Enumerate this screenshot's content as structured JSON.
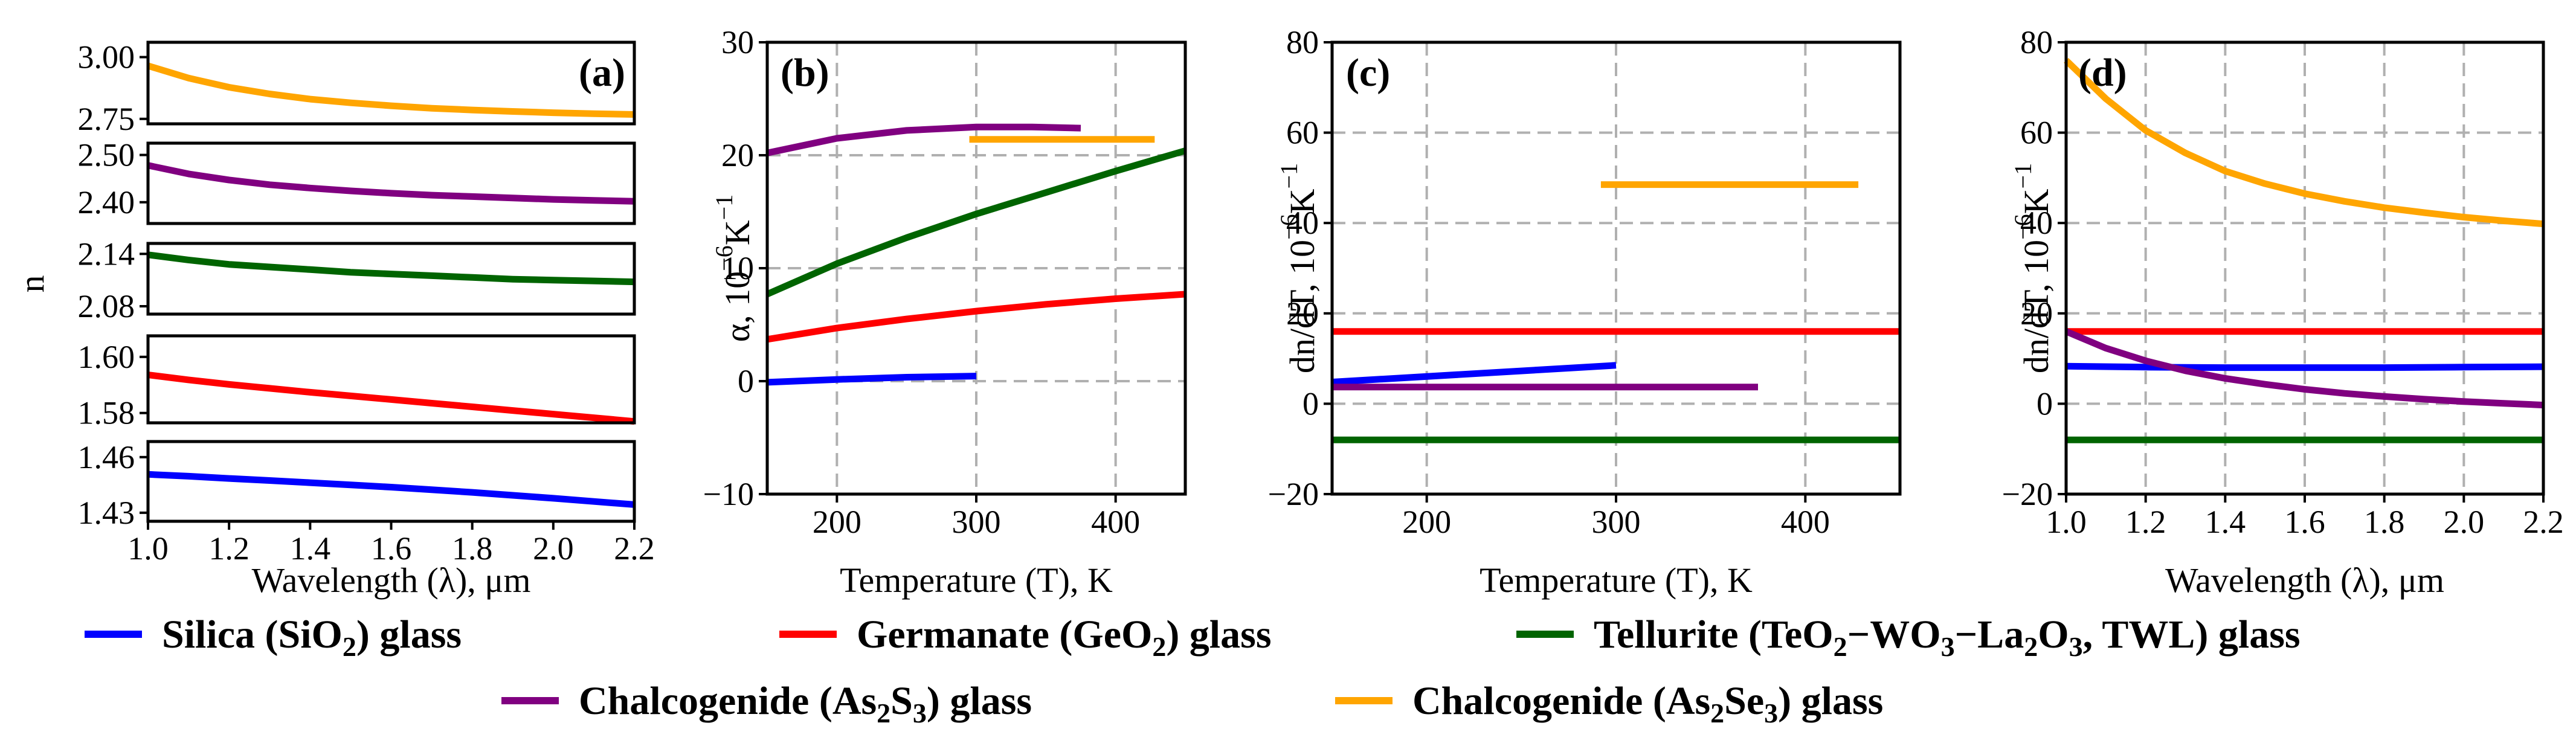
{
  "chart_data": [
    {
      "id": "a",
      "type": "line",
      "panel_label": "(a)",
      "xlabel": "Wavelength (λ), μm",
      "ylabel": "n",
      "xlim": [
        1.0,
        2.2
      ],
      "xticks": [
        "1.0",
        "1.2",
        "1.4",
        "1.6",
        "1.8",
        "2.0",
        "2.2"
      ],
      "xtick_values": [
        1.0,
        1.2,
        1.4,
        1.6,
        1.8,
        2.0,
        2.2
      ],
      "grid": false,
      "subplots": [
        {
          "series": "Chalcogenide (As₂Se₃) glass",
          "color": "#ffa500",
          "ylim": [
            2.73,
            3.06
          ],
          "yticks": [
            "3.00",
            "2.75"
          ],
          "ytick_values": [
            3.0,
            2.75
          ],
          "x": [
            1.0,
            1.1,
            1.2,
            1.3,
            1.4,
            1.5,
            1.6,
            1.7,
            1.8,
            1.9,
            2.0,
            2.1,
            2.2
          ],
          "y": [
            2.965,
            2.915,
            2.878,
            2.851,
            2.83,
            2.815,
            2.803,
            2.793,
            2.786,
            2.78,
            2.775,
            2.771,
            2.768
          ]
        },
        {
          "series": "Chalcogenide (As₂S₃) glass",
          "color": "#800080",
          "ylim": [
            2.355,
            2.525
          ],
          "yticks": [
            "2.50",
            "2.40"
          ],
          "ytick_values": [
            2.5,
            2.4
          ],
          "x": [
            1.0,
            1.1,
            1.2,
            1.3,
            1.4,
            1.5,
            1.6,
            1.7,
            1.8,
            1.9,
            2.0,
            2.1,
            2.2
          ],
          "y": [
            2.478,
            2.46,
            2.447,
            2.437,
            2.43,
            2.424,
            2.419,
            2.415,
            2.412,
            2.409,
            2.406,
            2.404,
            2.402
          ]
        },
        {
          "series": "Tellurite (TeO₂−WO₃−La₂O₃, TWL) glass",
          "color": "#006400",
          "ylim": [
            2.071,
            2.152
          ],
          "yticks": [
            "2.14",
            "2.08"
          ],
          "ytick_values": [
            2.14,
            2.08
          ],
          "x": [
            1.0,
            1.1,
            1.2,
            1.3,
            1.4,
            1.5,
            1.6,
            1.7,
            1.8,
            1.9,
            2.0,
            2.1,
            2.2
          ],
          "y": [
            2.139,
            2.133,
            2.128,
            2.125,
            2.122,
            2.119,
            2.117,
            2.115,
            2.113,
            2.111,
            2.11,
            2.109,
            2.108
          ]
        },
        {
          "series": "Germanate (GeO₂) glass",
          "color": "#ff0000",
          "ylim": [
            1.5765,
            1.6075
          ],
          "yticks": [
            "1.60",
            "1.58"
          ],
          "ytick_values": [
            1.6,
            1.58
          ],
          "x": [
            1.0,
            1.1,
            1.2,
            1.3,
            1.4,
            1.5,
            1.6,
            1.7,
            1.8,
            1.9,
            2.0,
            2.1,
            2.2
          ],
          "y": [
            1.5936,
            1.5918,
            1.5902,
            1.5888,
            1.5874,
            1.5861,
            1.5848,
            1.5835,
            1.5822,
            1.5809,
            1.5796,
            1.5783,
            1.577
          ]
        },
        {
          "series": "Silica (SiO₂) glass",
          "color": "#0000ff",
          "ylim": [
            1.4254,
            1.4684
          ],
          "yticks": [
            "1.46",
            "1.43"
          ],
          "ytick_values": [
            1.46,
            1.43
          ],
          "x": [
            1.0,
            1.1,
            1.2,
            1.3,
            1.4,
            1.5,
            1.6,
            1.7,
            1.8,
            1.9,
            2.0,
            2.1,
            2.2
          ],
          "y": [
            1.4507,
            1.4497,
            1.4485,
            1.4474,
            1.4462,
            1.445,
            1.4438,
            1.4424,
            1.441,
            1.4394,
            1.4378,
            1.4361,
            1.4344
          ]
        }
      ]
    },
    {
      "id": "b",
      "type": "line",
      "panel_label": "(b)",
      "xlabel": "Temperature (T), K",
      "ylabel_main": "α, 10",
      "ylabel_sup": "−6",
      "ylabel_unit": "K",
      "ylabel_unit_sup": "−1",
      "xlim": [
        150,
        450
      ],
      "ylim": [
        -10,
        30
      ],
      "xticks": [
        "200",
        "300",
        "400"
      ],
      "xtick_values": [
        200,
        300,
        400
      ],
      "yticks": [
        "−10",
        "0",
        "10",
        "20",
        "30"
      ],
      "ytick_values": [
        -10,
        0,
        10,
        20,
        30
      ],
      "grid": true,
      "series": [
        {
          "name": "Silica (SiO₂) glass",
          "color": "#0000ff",
          "x": [
            150,
            200,
            250,
            300
          ],
          "y": [
            -0.1,
            0.15,
            0.35,
            0.45
          ]
        },
        {
          "name": "Germanate (GeO₂) glass",
          "color": "#ff0000",
          "x": [
            150,
            200,
            250,
            300,
            350,
            400,
            450
          ],
          "y": [
            3.7,
            4.7,
            5.5,
            6.2,
            6.8,
            7.3,
            7.7
          ]
        },
        {
          "name": "Tellurite (TeO₂−WO₃−La₂O₃, TWL) glass",
          "color": "#006400",
          "x": [
            150,
            200,
            250,
            300,
            350,
            400,
            450
          ],
          "y": [
            7.7,
            10.4,
            12.7,
            14.8,
            16.7,
            18.6,
            20.4
          ]
        },
        {
          "name": "Chalcogenide (As₂S₃) glass",
          "color": "#800080",
          "x": [
            150,
            200,
            250,
            300,
            340,
            375
          ],
          "y": [
            20.2,
            21.5,
            22.2,
            22.5,
            22.5,
            22.4
          ]
        },
        {
          "name": "Chalcogenide (As₂Se₃) glass",
          "color": "#ffa500",
          "x": [
            295,
            428
          ],
          "y": [
            21.4,
            21.4
          ]
        }
      ]
    },
    {
      "id": "c",
      "type": "line",
      "panel_label": "(c)",
      "xlabel": "Temperature (T), K",
      "ylabel_main": "dn/dT, 10",
      "ylabel_sup": "−6",
      "ylabel_unit": "K",
      "ylabel_unit_sup": "−1",
      "xlim": [
        150,
        450
      ],
      "ylim": [
        -20,
        80
      ],
      "xticks": [
        "200",
        "300",
        "400"
      ],
      "xtick_values": [
        200,
        300,
        400
      ],
      "yticks": [
        "−20",
        "0",
        "20",
        "40",
        "60",
        "80"
      ],
      "ytick_values": [
        -20,
        0,
        20,
        40,
        60,
        80
      ],
      "grid": true,
      "series": [
        {
          "name": "Silica (SiO₂) glass",
          "color": "#0000ff",
          "x": [
            150,
            300
          ],
          "y": [
            4.8,
            8.5
          ]
        },
        {
          "name": "Germanate (GeO₂) glass",
          "color": "#ff0000",
          "x": [
            150,
            450
          ],
          "y": [
            16,
            16
          ]
        },
        {
          "name": "Tellurite (TeO₂−WO₃−La₂O₃, TWL) glass",
          "color": "#006400",
          "x": [
            150,
            450
          ],
          "y": [
            -8,
            -8
          ]
        },
        {
          "name": "Chalcogenide (As₂S₃) glass",
          "color": "#800080",
          "x": [
            150,
            375
          ],
          "y": [
            3.7,
            3.7
          ]
        },
        {
          "name": "Chalcogenide (As₂Se₃) glass",
          "color": "#ffa500",
          "x": [
            292,
            428
          ],
          "y": [
            48.5,
            48.5
          ]
        }
      ]
    },
    {
      "id": "d",
      "type": "line",
      "panel_label": "(d)",
      "xlabel": "Wavelength (λ), μm",
      "ylabel_main": "dn/dT, 10",
      "ylabel_sup": "−6",
      "ylabel_unit": "K",
      "ylabel_unit_sup": "−1",
      "xlim": [
        1.0,
        2.2
      ],
      "ylim": [
        -20,
        80
      ],
      "xticks": [
        "1.0",
        "1.2",
        "1.4",
        "1.6",
        "1.8",
        "2.0",
        "2.2"
      ],
      "xtick_values": [
        1.0,
        1.2,
        1.4,
        1.6,
        1.8,
        2.0,
        2.2
      ],
      "yticks": [
        "−20",
        "0",
        "20",
        "40",
        "60",
        "80"
      ],
      "ytick_values": [
        -20,
        0,
        20,
        40,
        60,
        80
      ],
      "grid": true,
      "series": [
        {
          "name": "Silica (SiO₂) glass",
          "color": "#0000ff",
          "x": [
            1.0,
            1.2,
            1.4,
            1.6,
            1.8,
            2.0,
            2.2
          ],
          "y": [
            8.3,
            8.1,
            8.0,
            8.0,
            8.0,
            8.1,
            8.2
          ]
        },
        {
          "name": "Germanate (GeO₂) glass",
          "color": "#ff0000",
          "x": [
            1.0,
            2.2
          ],
          "y": [
            16,
            16
          ]
        },
        {
          "name": "Tellurite (TeO₂−WO₃−La₂O₃, TWL) glass",
          "color": "#006400",
          "x": [
            1.0,
            2.2
          ],
          "y": [
            -8,
            -8
          ]
        },
        {
          "name": "Chalcogenide (As₂S₃) glass",
          "color": "#800080",
          "x": [
            1.0,
            1.1,
            1.2,
            1.3,
            1.4,
            1.5,
            1.6,
            1.7,
            1.8,
            1.9,
            2.0,
            2.1,
            2.2
          ],
          "y": [
            16,
            12.3,
            9.5,
            7.3,
            5.6,
            4.3,
            3.2,
            2.3,
            1.6,
            1.0,
            0.5,
            0.1,
            -0.3
          ]
        },
        {
          "name": "Chalcogenide (As₂Se₃) glass",
          "color": "#ffa500",
          "x": [
            1.0,
            1.1,
            1.2,
            1.3,
            1.4,
            1.5,
            1.6,
            1.7,
            1.8,
            1.9,
            2.0,
            2.1,
            2.2
          ],
          "y": [
            76,
            67.5,
            60.5,
            55.5,
            51.5,
            48.7,
            46.5,
            44.8,
            43.4,
            42.3,
            41.3,
            40.5,
            39.8
          ]
        }
      ]
    }
  ],
  "legend": {
    "placement": "bottom",
    "entries": [
      {
        "pre": "Silica (SiO",
        "s1": "2",
        "post": ") glass",
        "color": "#0000ff"
      },
      {
        "pre": "Germanate (GeO",
        "s1": "2",
        "post": ") glass",
        "color": "#ff0000"
      },
      {
        "pre": "Tellurite (TeO",
        "s1": "2",
        "mid1": "−WO",
        "s2": "3",
        "mid2": "−La",
        "s3": "2",
        "mid3": "O",
        "s4": "3",
        "post": ", TWL) glass",
        "color": "#006400"
      },
      {
        "pre": "Chalcogenide (As",
        "s1": "2",
        "mid1": "S",
        "s2": "3",
        "post": ") glass",
        "color": "#800080"
      },
      {
        "pre": "Chalcogenide (As",
        "s1": "2",
        "mid1": "Se",
        "s2": "3",
        "post": ") glass",
        "color": "#ffa500"
      }
    ]
  }
}
